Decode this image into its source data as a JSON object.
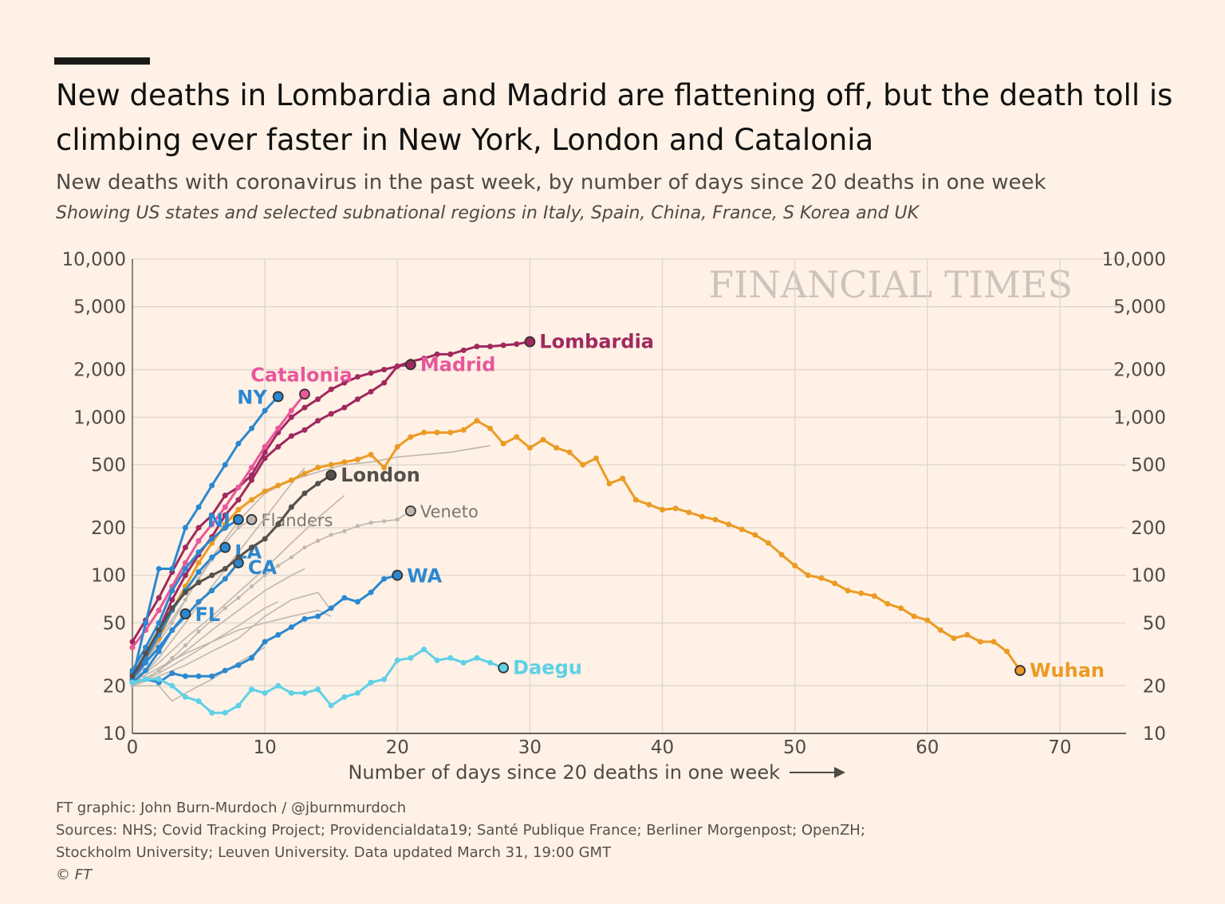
{
  "header": {
    "title": "New deaths in Lombardia and Madrid are flattening off, but the death toll is climbing ever faster in New York, London and Catalonia",
    "subtitle": "New deaths with coronavirus in the past week, by number of days since 20 deaths in one week",
    "subtitle_italic": "Showing US states and selected subnational regions in Italy, Spain, China, France, S Korea and UK"
  },
  "watermark": "FINANCIAL TIMES",
  "footer": {
    "credit": "FT graphic: John Burn-Murdoch / @jburnmurdoch",
    "sources_line1": "Sources: NHS; Covid Tracking Project; Providencialdata19; Santé Publique France; Berliner Morgenpost; OpenZH;",
    "sources_line2": "Stockholm University; Leuven University. Data updated March 31, 19:00 GMT",
    "copyright": "© FT"
  },
  "chart_data": {
    "type": "line",
    "xlabel": "Number of days since 20 deaths in one week",
    "ylabel": "",
    "xlim": [
      0,
      75
    ],
    "ylim": [
      10,
      10000
    ],
    "y_scale": "log",
    "x_ticks": [
      0,
      10,
      20,
      30,
      40,
      50,
      60,
      70
    ],
    "y_ticks": [
      10,
      20,
      50,
      100,
      200,
      500,
      1000,
      2000,
      5000,
      10000
    ],
    "y_tick_labels": [
      "10",
      "20",
      "50",
      "100",
      "200",
      "500",
      "1,000",
      "2,000",
      "5,000",
      "10,000"
    ],
    "grid": true,
    "colors": {
      "lombardia": "#a0295e",
      "madrid": "#a0295e",
      "catalonia": "#e8579a",
      "us_blue": "#2b88d0",
      "wuhan": "#eb9b24",
      "london": "#54504c",
      "daegu": "#5ed1e6",
      "grey": "#bfb7af",
      "grey_label": "#7d7770",
      "axis": "#66605a",
      "gridline": "#e3d9d0"
    },
    "series": [
      {
        "name": "Lombardia",
        "color": "lombardia",
        "label_color": "lombardia",
        "x": [
          0,
          1,
          2,
          3,
          4,
          5,
          6,
          7,
          8,
          9,
          10,
          11,
          12,
          13,
          14,
          15,
          16,
          17,
          18,
          19,
          20,
          21,
          22,
          23,
          24,
          25,
          26,
          27,
          28,
          29,
          30
        ],
        "y": [
          22,
          30,
          45,
          70,
          100,
          135,
          175,
          240,
          300,
          400,
          550,
          650,
          760,
          830,
          950,
          1050,
          1150,
          1300,
          1450,
          1650,
          2100,
          2250,
          2350,
          2500,
          2500,
          2650,
          2800,
          2800,
          2850,
          2900,
          3000
        ]
      },
      {
        "name": "Madrid",
        "color": "madrid",
        "label_color": "catalonia",
        "x": [
          0,
          1,
          2,
          3,
          4,
          5,
          6,
          7,
          8,
          9,
          10,
          11,
          12,
          13,
          14,
          15,
          16,
          17,
          18,
          19,
          20,
          21
        ],
        "y": [
          38,
          52,
          72,
          105,
          150,
          200,
          240,
          320,
          360,
          430,
          600,
          800,
          1000,
          1150,
          1300,
          1500,
          1650,
          1800,
          1900,
          2000,
          2100,
          2150
        ]
      },
      {
        "name": "Catalonia",
        "color": "catalonia",
        "label_color": "catalonia",
        "x": [
          0,
          1,
          2,
          3,
          4,
          5,
          6,
          7,
          8,
          9,
          10,
          11,
          12,
          13
        ],
        "y": [
          35,
          45,
          60,
          85,
          120,
          165,
          210,
          270,
          360,
          480,
          650,
          850,
          1100,
          1400
        ]
      },
      {
        "name": "NY",
        "color": "us_blue",
        "label_color": "us_blue",
        "x": [
          0,
          1,
          2,
          3,
          4,
          5,
          6,
          7,
          8,
          9,
          10,
          11
        ],
        "y": [
          22,
          50,
          110,
          110,
          200,
          270,
          370,
          500,
          680,
          850,
          1100,
          1350
        ]
      },
      {
        "name": "NJ",
        "color": "us_blue",
        "label_color": "us_blue",
        "x": [
          0,
          1,
          2,
          3,
          4,
          5,
          6,
          7,
          8
        ],
        "y": [
          25,
          35,
          50,
          80,
          110,
          140,
          170,
          200,
          225
        ]
      },
      {
        "name": "LA",
        "color": "us_blue",
        "label_color": "us_blue",
        "x": [
          0,
          1,
          2,
          3,
          4,
          5,
          6,
          7
        ],
        "y": [
          24,
          30,
          42,
          60,
          80,
          105,
          130,
          150
        ]
      },
      {
        "name": "CA",
        "color": "us_blue",
        "label_color": "us_blue",
        "x": [
          0,
          1,
          2,
          3,
          4,
          5,
          6,
          7,
          8
        ],
        "y": [
          22,
          28,
          35,
          45,
          55,
          68,
          80,
          95,
          120
        ]
      },
      {
        "name": "FL",
        "color": "us_blue",
        "label_color": "us_blue",
        "x": [
          0,
          1,
          2,
          3,
          4
        ],
        "y": [
          21,
          25,
          33,
          45,
          57
        ]
      },
      {
        "name": "WA",
        "color": "us_blue",
        "label_color": "us_blue",
        "x": [
          0,
          1,
          2,
          3,
          4,
          5,
          6,
          7,
          8,
          9,
          10,
          11,
          12,
          13,
          14,
          15,
          16,
          17,
          18,
          19,
          20
        ],
        "y": [
          21,
          22,
          21,
          24,
          23,
          23,
          23,
          25,
          27,
          30,
          38,
          42,
          47,
          53,
          55,
          62,
          72,
          68,
          78,
          95,
          100
        ]
      },
      {
        "name": "London",
        "color": "london",
        "label_color": "london",
        "x": [
          0,
          1,
          2,
          3,
          4,
          5,
          6,
          7,
          8,
          9,
          10,
          11,
          12,
          13,
          14,
          15
        ],
        "y": [
          23,
          32,
          45,
          62,
          78,
          90,
          100,
          110,
          130,
          150,
          170,
          210,
          270,
          330,
          380,
          430
        ]
      },
      {
        "name": "Daegu",
        "color": "daegu",
        "label_color": "daegu",
        "x": [
          0,
          1,
          2,
          3,
          4,
          5,
          6,
          7,
          8,
          9,
          10,
          11,
          12,
          13,
          14,
          15,
          16,
          17,
          18,
          19,
          20,
          21,
          22,
          23,
          24,
          25,
          26,
          27,
          28
        ],
        "y": [
          21,
          22,
          22,
          20,
          17,
          16,
          13.5,
          13.5,
          15,
          19,
          18,
          20,
          18,
          18,
          19,
          15,
          17,
          18,
          21,
          22,
          29,
          30,
          34,
          29,
          30,
          28,
          30,
          28,
          26
        ]
      },
      {
        "name": "Wuhan",
        "color": "wuhan",
        "label_color": "wuhan",
        "x": [
          0,
          1,
          2,
          3,
          4,
          5,
          6,
          7,
          8,
          9,
          10,
          11,
          12,
          13,
          14,
          15,
          16,
          17,
          18,
          19,
          20,
          21,
          22,
          23,
          24,
          25,
          26,
          27,
          28,
          29,
          30,
          31,
          32,
          33,
          34,
          35,
          36,
          37,
          38,
          39,
          40,
          41,
          42,
          43,
          44,
          45,
          46,
          47,
          48,
          49,
          50,
          51,
          52,
          53,
          54,
          55,
          56,
          57,
          58,
          59,
          60,
          61,
          62,
          63,
          64,
          65,
          66,
          67
        ],
        "y": [
          24,
          30,
          40,
          60,
          85,
          120,
          160,
          210,
          260,
          300,
          340,
          370,
          400,
          440,
          480,
          500,
          520,
          540,
          580,
          480,
          650,
          750,
          800,
          800,
          800,
          830,
          950,
          850,
          680,
          750,
          640,
          720,
          640,
          600,
          500,
          550,
          380,
          410,
          300,
          280,
          260,
          265,
          250,
          235,
          225,
          210,
          195,
          180,
          160,
          135,
          115,
          100,
          96,
          89,
          80,
          77,
          74,
          66,
          62,
          55,
          52,
          45,
          40,
          42,
          38,
          38,
          33,
          25
        ]
      },
      {
        "name": "Veneto",
        "color": "grey",
        "label_color": "grey_label",
        "x": [
          0,
          1,
          2,
          3,
          4,
          5,
          6,
          7,
          8,
          9,
          10,
          11,
          12,
          13,
          14,
          15,
          16,
          17,
          18,
          19,
          20,
          21
        ],
        "y": [
          20,
          22,
          25,
          30,
          36,
          44,
          52,
          62,
          72,
          85,
          100,
          115,
          130,
          150,
          165,
          180,
          190,
          205,
          215,
          220,
          225,
          255
        ]
      },
      {
        "name": "Flanders",
        "color": "grey",
        "label_color": "grey_label",
        "x": [
          0,
          1,
          2,
          3,
          4,
          5,
          6,
          7,
          8,
          9
        ],
        "y": [
          20,
          28,
          38,
          50,
          70,
          95,
          125,
          160,
          200,
          225
        ]
      },
      {
        "name": "",
        "color": "grey",
        "label_color": "grey",
        "x": [
          0,
          2,
          4,
          6,
          8,
          10,
          12,
          14,
          16,
          18,
          20,
          22,
          24,
          26,
          27
        ],
        "y": [
          20,
          40,
          70,
          130,
          220,
          330,
          400,
          450,
          500,
          520,
          560,
          580,
          600,
          640,
          660
        ]
      },
      {
        "name": "",
        "color": "grey",
        "label_color": "grey",
        "x": [
          0,
          2,
          4,
          6,
          8,
          10,
          12,
          13
        ],
        "y": [
          20,
          30,
          50,
          85,
          140,
          230,
          380,
          480
        ]
      },
      {
        "name": "",
        "color": "grey",
        "label_color": "grey",
        "x": [
          0,
          2,
          4,
          6,
          8,
          10,
          12,
          14,
          16
        ],
        "y": [
          21,
          28,
          40,
          55,
          78,
          110,
          160,
          230,
          320
        ]
      },
      {
        "name": "",
        "color": "grey",
        "label_color": "grey",
        "x": [
          0,
          2,
          4,
          6,
          8,
          10,
          12,
          13
        ],
        "y": [
          20,
          25,
          33,
          45,
          60,
          80,
          100,
          110
        ]
      },
      {
        "name": "",
        "color": "grey",
        "label_color": "grey",
        "x": [
          0,
          2,
          4,
          6,
          8,
          10,
          12,
          14,
          15
        ],
        "y": [
          20,
          24,
          30,
          38,
          45,
          50,
          55,
          60,
          55
        ]
      },
      {
        "name": "",
        "color": "grey",
        "label_color": "grey",
        "x": [
          0,
          2,
          4,
          6,
          8,
          10,
          12,
          14,
          15
        ],
        "y": [
          20,
          23,
          27,
          33,
          40,
          55,
          70,
          78,
          60
        ]
      },
      {
        "name": "",
        "color": "grey",
        "label_color": "grey",
        "x": [
          0,
          2,
          3,
          4,
          6,
          8,
          10
        ],
        "y": [
          20,
          20,
          16,
          18,
          22,
          28,
          35
        ]
      },
      {
        "name": "",
        "color": "grey",
        "label_color": "grey",
        "x": [
          0,
          2,
          4,
          6,
          8,
          10,
          11
        ],
        "y": [
          21,
          26,
          32,
          38,
          48,
          62,
          68
        ]
      }
    ]
  }
}
